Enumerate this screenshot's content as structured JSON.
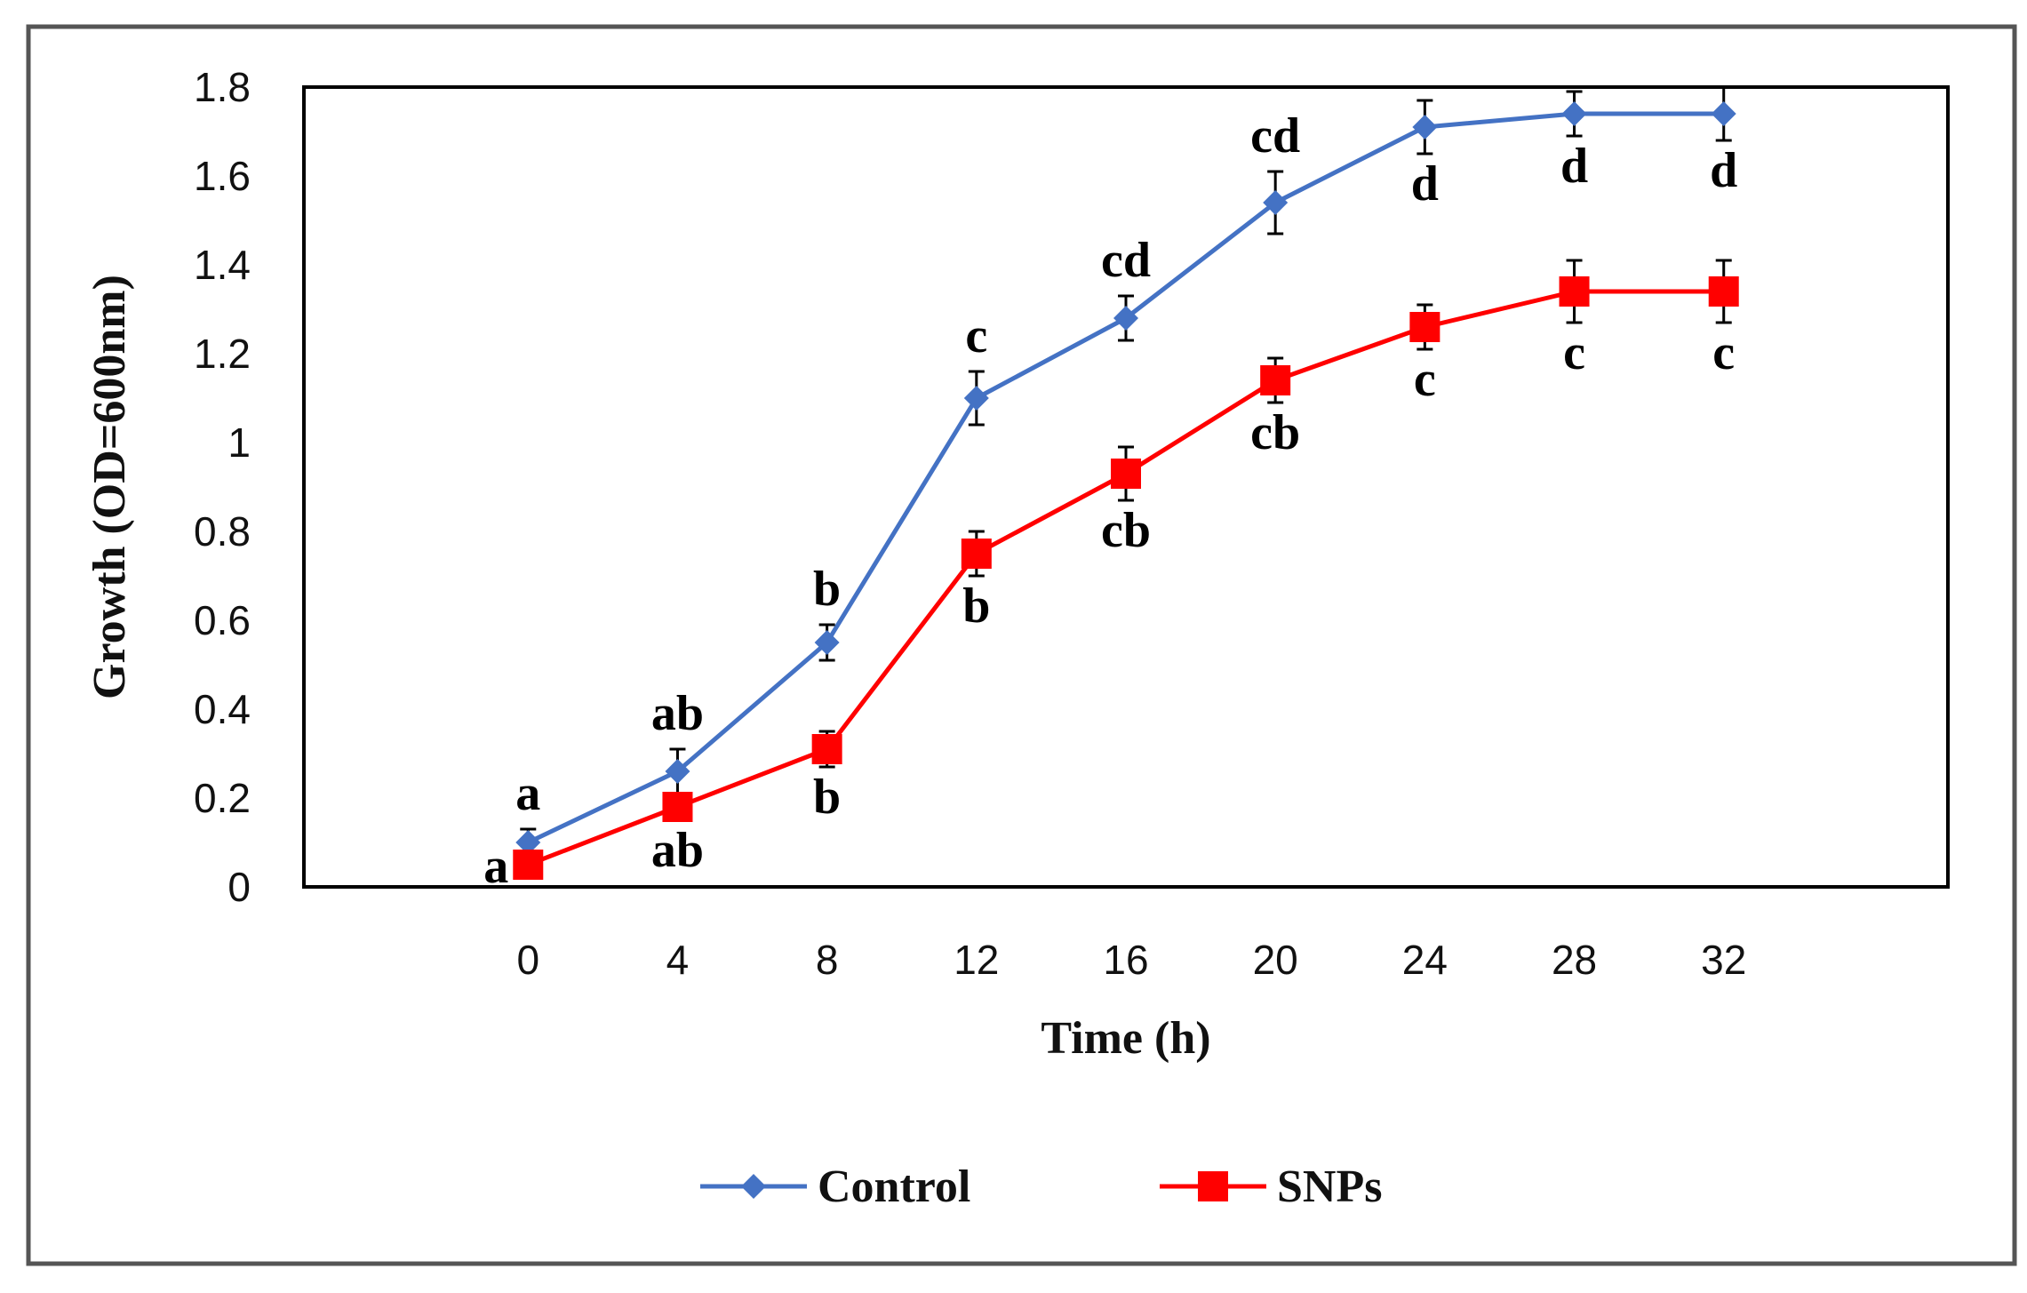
{
  "chart_data": {
    "type": "line",
    "title": "",
    "xlabel": "Time (h)",
    "ylabel": "Growth (OD=600nm)",
    "x": [
      0,
      4,
      8,
      12,
      16,
      20,
      24,
      28,
      32
    ],
    "xticks": [
      "0",
      "4",
      "8",
      "12",
      "16",
      "20",
      "24",
      "28",
      "32"
    ],
    "yticks": [
      "0",
      "0.2",
      "0.4",
      "0.6",
      "0.8",
      "1",
      "1.2",
      "1.4",
      "1.6",
      "1.8"
    ],
    "ylim": [
      0,
      1.8
    ],
    "xlim": [
      -6,
      38
    ],
    "grid": false,
    "legend_position": "bottom",
    "series": [
      {
        "name": "Control",
        "color": "#4472C4",
        "marker": "diamond",
        "values": [
          0.1,
          0.26,
          0.55,
          1.1,
          1.28,
          1.54,
          1.71,
          1.74,
          1.74
        ],
        "errors": [
          0.03,
          0.05,
          0.04,
          0.06,
          0.05,
          0.07,
          0.06,
          0.05,
          0.06
        ],
        "sig_labels": [
          "a",
          "ab",
          "b",
          "c",
          "cd",
          "cd",
          "d",
          "d",
          "d"
        ],
        "sig_position": [
          "above",
          "above",
          "above",
          "above",
          "above",
          "above",
          "below",
          "below",
          "below"
        ]
      },
      {
        "name": "SNPs",
        "color": "#FF0000",
        "marker": "square",
        "values": [
          0.05,
          0.18,
          0.31,
          0.75,
          0.93,
          1.14,
          1.26,
          1.34,
          1.34
        ],
        "errors": [
          0.02,
          0.03,
          0.04,
          0.05,
          0.06,
          0.05,
          0.05,
          0.07,
          0.07
        ],
        "sig_labels": [
          "a",
          "ab",
          "b",
          "b",
          "cb",
          "cb",
          "c",
          "c",
          "c"
        ],
        "sig_position": [
          "left",
          "below",
          "below",
          "below",
          "below",
          "below",
          "below",
          "below",
          "below"
        ]
      }
    ]
  }
}
